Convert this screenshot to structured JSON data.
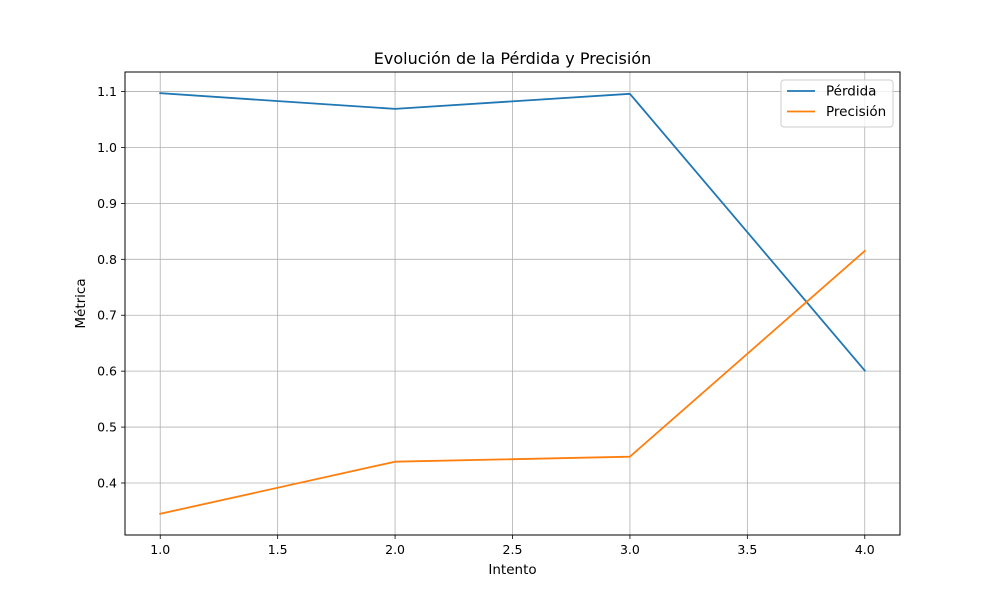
{
  "chart_data": {
    "type": "line",
    "title": "Evolución de la Pérdida y Precisión",
    "xlabel": "Intento",
    "ylabel": "Métrica",
    "x": [
      1.0,
      2.0,
      3.0,
      4.0
    ],
    "series": [
      {
        "name": "Pérdida",
        "values": [
          1.097,
          1.069,
          1.096,
          0.601
        ],
        "color": "#1f77b4"
      },
      {
        "name": "Precisión",
        "values": [
          0.345,
          0.438,
          0.447,
          0.815
        ],
        "color": "#ff7f0e"
      }
    ],
    "xlim": [
      0.85,
      4.15
    ],
    "ylim": [
      0.307,
      1.135
    ],
    "xticks": [
      1.0,
      1.5,
      2.0,
      2.5,
      3.0,
      3.5,
      4.0
    ],
    "xtick_labels": [
      "1.0",
      "1.5",
      "2.0",
      "2.5",
      "3.0",
      "3.5",
      "4.0"
    ],
    "yticks": [
      0.4,
      0.5,
      0.6,
      0.7,
      0.8,
      0.9,
      1.0,
      1.1
    ],
    "ytick_labels": [
      "0.4",
      "0.5",
      "0.6",
      "0.7",
      "0.8",
      "0.9",
      "1.0",
      "1.1"
    ],
    "grid": true,
    "legend_position": "top-right"
  }
}
